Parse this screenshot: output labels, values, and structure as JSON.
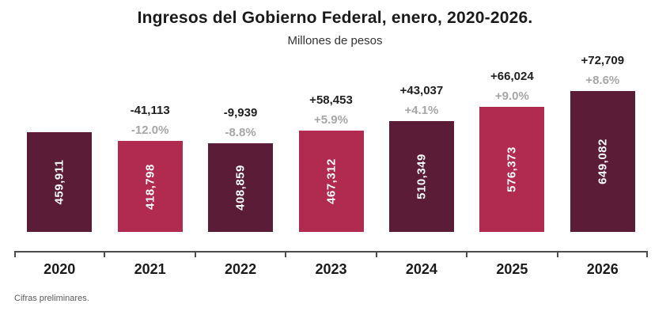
{
  "chart_data": {
    "type": "bar",
    "title": "Ingresos del Gobierno Federal, enero, 2020-2026.",
    "subtitle": "Millones de pesos",
    "footnote": "Cifras preliminares.",
    "categories": [
      "2020",
      "2021",
      "2022",
      "2023",
      "2024",
      "2025",
      "2026"
    ],
    "values": [
      459911,
      418798,
      408859,
      467312,
      510349,
      576373,
      649082
    ],
    "bar_value_labels": [
      "459,911",
      "418,798",
      "408,859",
      "467,312",
      "510,349",
      "576,373",
      "649,082"
    ],
    "change_labels": [
      "",
      "-41,113",
      "-9,939",
      "+58,453",
      "+43,037",
      "+66,024",
      "+72,709"
    ],
    "percent_labels": [
      "",
      "-12.0%",
      "-8.8%",
      "+5.9%",
      "+4.1%",
      "+9.0%",
      "+8.6%"
    ],
    "bar_pattern": [
      "dark",
      "light",
      "dark",
      "light",
      "dark",
      "light",
      "dark"
    ],
    "ylim": [
      0,
      649082
    ],
    "grid": false,
    "legend": false,
    "bar_value_orientation": "vertical",
    "colors": {
      "bar_dark": "#5b1c38",
      "bar_light": "#b12a50",
      "bar_value_label": "#ffffff",
      "change_label": "#1f1f1f",
      "percent_label": "#a6a6a6",
      "axis": "#4d4d4d",
      "year_label": "#1a1a1a",
      "footnote": "#595959"
    }
  }
}
